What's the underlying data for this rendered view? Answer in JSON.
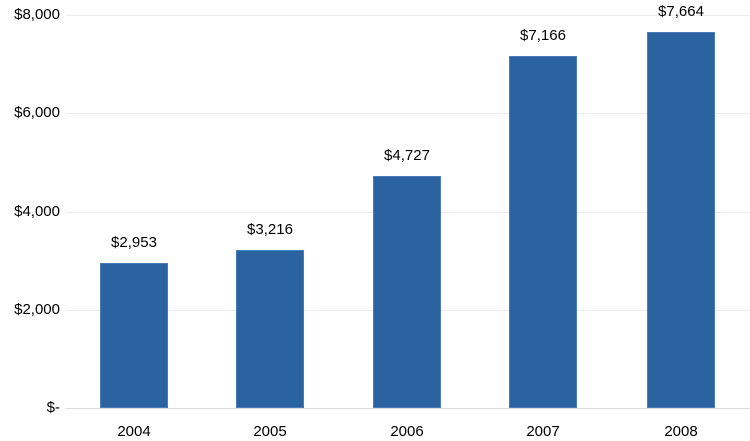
{
  "chart_data": {
    "type": "bar",
    "title": "",
    "xlabel": "",
    "ylabel": "",
    "categories": [
      "2004",
      "2005",
      "2006",
      "2007",
      "2008"
    ],
    "values": [
      2953,
      3216,
      4727,
      7166,
      7664
    ],
    "data_labels": [
      "$2,953",
      "$3,216",
      "$4,727",
      "$7,166",
      "$7,664"
    ],
    "ylim": [
      0,
      8000
    ],
    "yticks": [
      0,
      2000,
      4000,
      6000,
      8000
    ],
    "ytick_labels": [
      "$-",
      "$2,000",
      "$4,000",
      "$6,000",
      "$8,000"
    ],
    "grid": true,
    "legend": null,
    "bar_color": "#2b62a0"
  }
}
